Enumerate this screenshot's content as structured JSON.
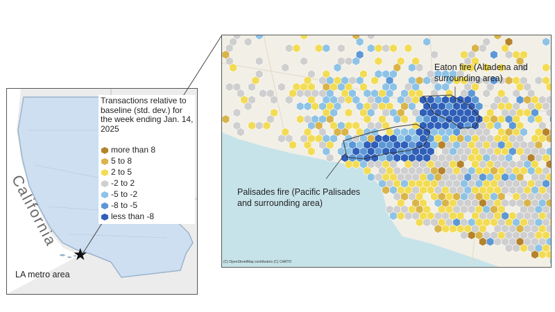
{
  "inset": {
    "state_label": "California",
    "metro_label": "LA metro area",
    "marker_icon": "star-icon"
  },
  "legend": {
    "title": "Transactions relative to baseline (std. dev.) for the week ending Jan. 14, 2025",
    "items": [
      {
        "label": "more than 8",
        "color": "#b5832b"
      },
      {
        "label": "5 to 8",
        "color": "#d9b44a"
      },
      {
        "label": "2 to 5",
        "color": "#f3dc55"
      },
      {
        "label": "-2 to 2",
        "color": "#cfcfcf"
      },
      {
        "label": "-5 to -2",
        "color": "#8ec3e6"
      },
      {
        "label": "-8 to -5",
        "color": "#5d98d6"
      },
      {
        "label": "less than -8",
        "color": "#2f5fb8"
      }
    ]
  },
  "annotations": {
    "eaton": "Eaton fire (Altadena and surrounding area)",
    "palisades": "Palisades fire (Pacific Palisades and surrounding area)"
  },
  "attribution": "(C) OpenStreetMap contributors (C) CARTO",
  "colors": {
    "water": "#c6e3e9",
    "land": "#f2efe6",
    "state_fill": "#cddff0",
    "state_outline": "#9bb3cc",
    "fire_outline": "#333333"
  }
}
